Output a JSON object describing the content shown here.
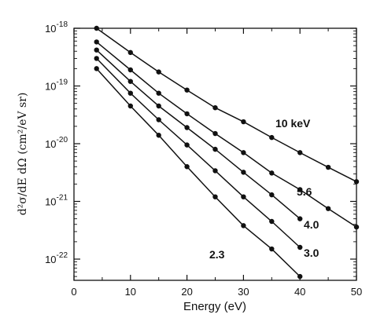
{
  "chart_data": {
    "type": "line",
    "xlabel": "Energy (eV)",
    "ylabel": "d²σ/dE dΩ (cm²/eV sr)",
    "xlim": [
      0,
      50
    ],
    "ylim": [
      5e-23,
      1e-18
    ],
    "y_scale": "log",
    "grid": false,
    "x_ticks": [
      0,
      10,
      20,
      30,
      40,
      50
    ],
    "y_ticks": [
      {
        "value": 1e-18,
        "base": "10",
        "exp": "-18"
      },
      {
        "value": 1e-19,
        "base": "10",
        "exp": "-19"
      },
      {
        "value": 1e-20,
        "base": "10",
        "exp": "-20"
      },
      {
        "value": 1e-21,
        "base": "10",
        "exp": "-21"
      },
      {
        "value": 1e-22,
        "base": "10",
        "exp": "-22"
      }
    ],
    "series": [
      {
        "name": "10 keV",
        "x": [
          4,
          10,
          15,
          20,
          25,
          30,
          35,
          40,
          45,
          50
        ],
        "y": [
          1e-18,
          3.8e-19,
          1.75e-19,
          8.5e-20,
          4.2e-20,
          2.4e-20,
          1.28e-20,
          7e-21,
          3.9e-21,
          2.2e-21
        ]
      },
      {
        "name": "5.6",
        "x": [
          4,
          10,
          15,
          20,
          25,
          30,
          35,
          40,
          45,
          50
        ],
        "y": [
          5.8e-19,
          1.9e-19,
          7.5e-20,
          3.3e-20,
          1.5e-20,
          7e-21,
          3.1e-21,
          1.6e-21,
          7.5e-22,
          3.6e-22
        ]
      },
      {
        "name": "4.0",
        "x": [
          4,
          10,
          15,
          20,
          25,
          30,
          35,
          40
        ],
        "y": [
          4.2e-19,
          1.2e-19,
          4.5e-20,
          1.9e-20,
          8e-21,
          3.2e-21,
          1.3e-21,
          5e-22
        ]
      },
      {
        "name": "3.0",
        "x": [
          4,
          10,
          15,
          20,
          25,
          30,
          35,
          40
        ],
        "y": [
          3e-19,
          7.5e-20,
          2.6e-20,
          9.5e-21,
          3.4e-21,
          1.2e-21,
          4.5e-22,
          1.6e-22
        ]
      },
      {
        "name": "2.3",
        "x": [
          4,
          10,
          15,
          20,
          25,
          30,
          35,
          40
        ],
        "y": [
          2e-19,
          4.5e-20,
          1.4e-20,
          4e-21,
          1.2e-21,
          3.8e-22,
          1.5e-22,
          5e-23
        ]
      }
    ],
    "annotations": [
      "10 keV",
      "5.6",
      "4.0",
      "3.0",
      "2.3"
    ],
    "colors": {
      "line": "#111111",
      "marker": "#111111"
    }
  }
}
